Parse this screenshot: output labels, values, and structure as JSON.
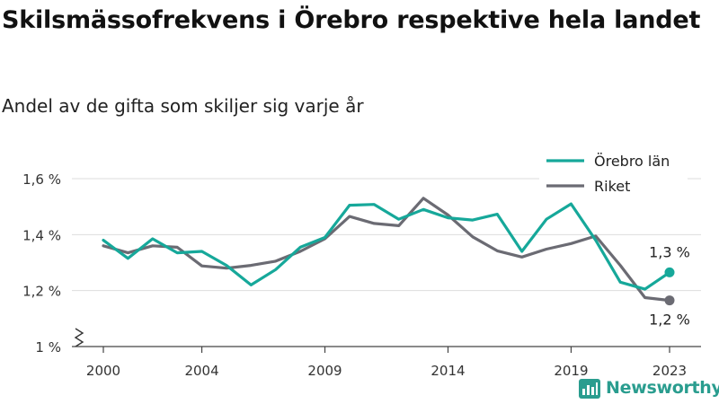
{
  "title": "Skilsmässofrekvens i Örebro respektive hela landet",
  "subtitle": "Andel av de gifta som skiljer sig varje år",
  "brand": {
    "name": "Newsworthy",
    "icon": "newsworthy-logo-icon",
    "color": "#2a9d8f"
  },
  "chart_data": {
    "type": "line",
    "x": [
      2000,
      2001,
      2002,
      2003,
      2004,
      2005,
      2006,
      2007,
      2008,
      2009,
      2010,
      2011,
      2012,
      2013,
      2014,
      2015,
      2016,
      2017,
      2018,
      2019,
      2020,
      2021,
      2022,
      2023
    ],
    "xticks": [
      2000,
      2004,
      2009,
      2014,
      2019,
      2023
    ],
    "yticks": [
      1.0,
      1.2,
      1.4,
      1.6
    ],
    "ytick_labels": [
      "1 %",
      "1,2 %",
      "1,4 %",
      "1,6 %"
    ],
    "ylim": [
      1.0,
      1.66
    ],
    "grid": true,
    "axis_break": true,
    "legend_position": "top-right",
    "series": [
      {
        "name": "Örebro län",
        "color": "#16a89a",
        "values": [
          1.38,
          1.315,
          1.385,
          1.335,
          1.34,
          1.29,
          1.22,
          1.275,
          1.355,
          1.39,
          1.505,
          1.508,
          1.455,
          1.49,
          1.46,
          1.452,
          1.473,
          1.34,
          1.455,
          1.51,
          1.38,
          1.23,
          1.205,
          1.265
        ],
        "end_label": "1,3 %"
      },
      {
        "name": "Riket",
        "color": "#6b6b73",
        "values": [
          1.36,
          1.335,
          1.36,
          1.355,
          1.288,
          1.28,
          1.29,
          1.305,
          1.34,
          1.385,
          1.465,
          1.44,
          1.432,
          1.53,
          1.47,
          1.392,
          1.342,
          1.32,
          1.348,
          1.368,
          1.395,
          1.29,
          1.175,
          1.165
        ],
        "end_label": "1,2 %"
      }
    ]
  }
}
